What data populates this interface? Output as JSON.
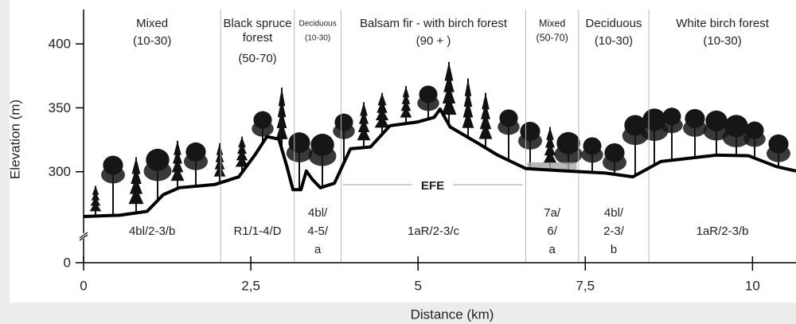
{
  "chart_data": {
    "type": "line",
    "x_label": "Distance (km)",
    "y_label": "Elevation (m)",
    "xlim": [
      0,
      10.65
    ],
    "ylim": [
      0,
      425
    ],
    "y_break": [
      0,
      255
    ],
    "xticks": [
      0,
      {
        "value": 2.5,
        "label": "2,5"
      },
      5,
      {
        "value": 7.5,
        "label": "7,5"
      },
      10
    ],
    "yticks": [
      0,
      300,
      350,
      400
    ],
    "color": "#000000",
    "x": [
      0,
      0.54,
      0.95,
      1.19,
      1.43,
      1.96,
      2.32,
      2.56,
      2.74,
      2.92,
      3.04,
      3.13,
      3.25,
      3.33,
      3.42,
      3.54,
      3.75,
      3.99,
      4.29,
      4.58,
      5.0,
      5.24,
      5.33,
      5.48,
      5.89,
      6.19,
      6.61,
      7.08,
      7.8,
      8.21,
      8.63,
      9.46,
      9.94,
      10.36,
      10.65
    ],
    "values": [
      265,
      266,
      269,
      282,
      287.5,
      290,
      296,
      313,
      327.5,
      325.5,
      304,
      286,
      286,
      300.6,
      294,
      287.5,
      291,
      318,
      319.4,
      336,
      339,
      342.5,
      349,
      335,
      322.5,
      313,
      302.5,
      301,
      299,
      296,
      308,
      313,
      312.5,
      304,
      300.6
    ],
    "boundaries": [
      2.05,
      3.15,
      3.85,
      6.61,
      7.4,
      8.45
    ],
    "zones": [
      {
        "name": [
          "Mixed"
        ],
        "age": "(10-30)",
        "code": [
          "4bl/2-3/b"
        ]
      },
      {
        "name": [
          "Black spruce",
          "forest"
        ],
        "age": "(50-70)",
        "code": [
          "R1/1-4/D"
        ]
      },
      {
        "name": [
          "Deciduous"
        ],
        "age": "(10-30)",
        "code": [
          "4bl/",
          "4-5/",
          "a"
        ]
      },
      {
        "name": [
          "Balsam fir - with birch forest"
        ],
        "age": "(90 + )",
        "code": [
          "1aR/2-3/c"
        ]
      },
      {
        "name": [
          "Mixed"
        ],
        "age": "(50-70)",
        "code": [
          "7a/",
          "6/",
          "a"
        ]
      },
      {
        "name": [
          "Deciduous"
        ],
        "age": "(10-30)",
        "code": [
          "4bl/",
          "2-3/",
          "b"
        ]
      },
      {
        "name": [
          "White birch forest"
        ],
        "age": "(10-30)",
        "code": [
          "1aR/2-3/b"
        ]
      }
    ],
    "annotation": "EFE"
  }
}
